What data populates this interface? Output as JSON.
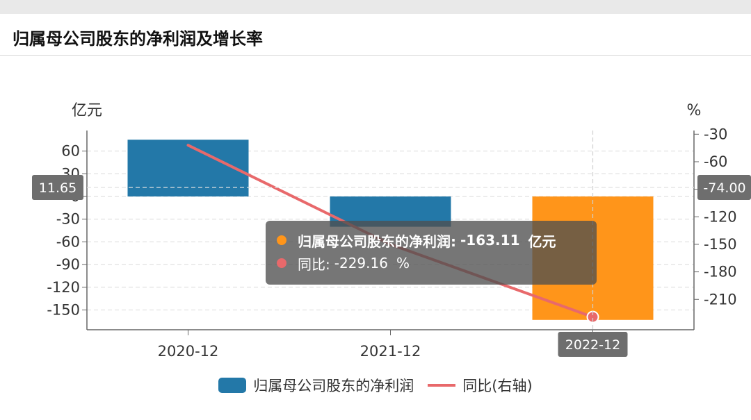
{
  "title": "归属母公司股东的净利润及增长率",
  "colors": {
    "bar": "#2378a8",
    "bar_highlight": "#ff951a",
    "line": "#e8696b",
    "axis": "#666666",
    "grid": "#d9d9d9",
    "label_box": "#6e6e6e"
  },
  "chart_data": {
    "type": "bar",
    "categories": [
      "2020-12",
      "2021-12",
      "2022-12"
    ],
    "series": [
      {
        "name": "归属母公司股东的净利润",
        "axis": "left",
        "type": "bar",
        "values": [
          75,
          -40,
          -163.11
        ]
      },
      {
        "name": "同比(右轴)",
        "axis": "right",
        "type": "line",
        "values": [
          -42,
          -150,
          -229.16
        ]
      }
    ],
    "y_left": {
      "unit": "亿元",
      "ticks": [
        "60",
        "30",
        "0",
        "-30",
        "-60",
        "-90",
        "-120",
        "-150"
      ],
      "range": [
        -175,
        75
      ]
    },
    "y_right": {
      "unit": "%",
      "ticks": [
        "-30",
        "-60",
        "-90",
        "-120",
        "-150",
        "-180",
        "-210"
      ],
      "range": [
        -243.09,
        -25.97
      ]
    },
    "highlight_index": 2,
    "pointer": {
      "y_left_label": "11.65",
      "y_right_label": "-74.00",
      "x_label": "2022-12"
    },
    "tooltip": {
      "row1_label": "归属母公司股东的净利润:",
      "row1_value": "-163.11",
      "row1_unit": "亿元",
      "row2_label": "同比:",
      "row2_value": "-229.16",
      "row2_unit": "%"
    },
    "legend": [
      "归属母公司股东的净利润",
      "同比(右轴)"
    ],
    "grid": true
  }
}
